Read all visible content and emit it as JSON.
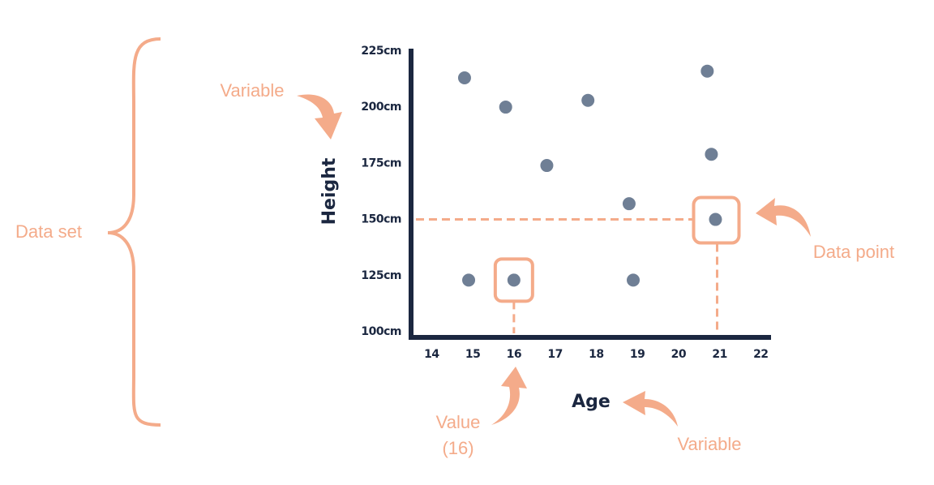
{
  "chart_data": {
    "type": "scatter",
    "x_label": "Age",
    "y_label": "Height",
    "x": [
      14.8,
      15.8,
      17.8,
      20.7,
      16.8,
      20.8,
      18.8,
      20.9,
      14.9,
      16,
      18.9
    ],
    "values": [
      213,
      200,
      203,
      216,
      174,
      179,
      157,
      150,
      123,
      123,
      123
    ],
    "color": "#6f7f95",
    "xlim": [
      13.5,
      22.25
    ],
    "xticks": [
      14,
      15,
      16,
      17,
      18,
      19,
      20,
      21,
      22
    ],
    "ylim": [
      97.5,
      226
    ],
    "yticks": [
      {
        "value": 100,
        "label": "100cm"
      },
      {
        "value": 125,
        "label": "125cm"
      },
      {
        "value": 150,
        "label": "150cm"
      },
      {
        "value": 175,
        "label": "175cm"
      },
      {
        "value": 200,
        "label": "200cm"
      },
      {
        "value": 225,
        "label": "225cm"
      }
    ],
    "grid": false,
    "annotations": [
      "Data set",
      "Variable",
      "Data point",
      "Value",
      "(16)",
      "Variable"
    ]
  }
}
